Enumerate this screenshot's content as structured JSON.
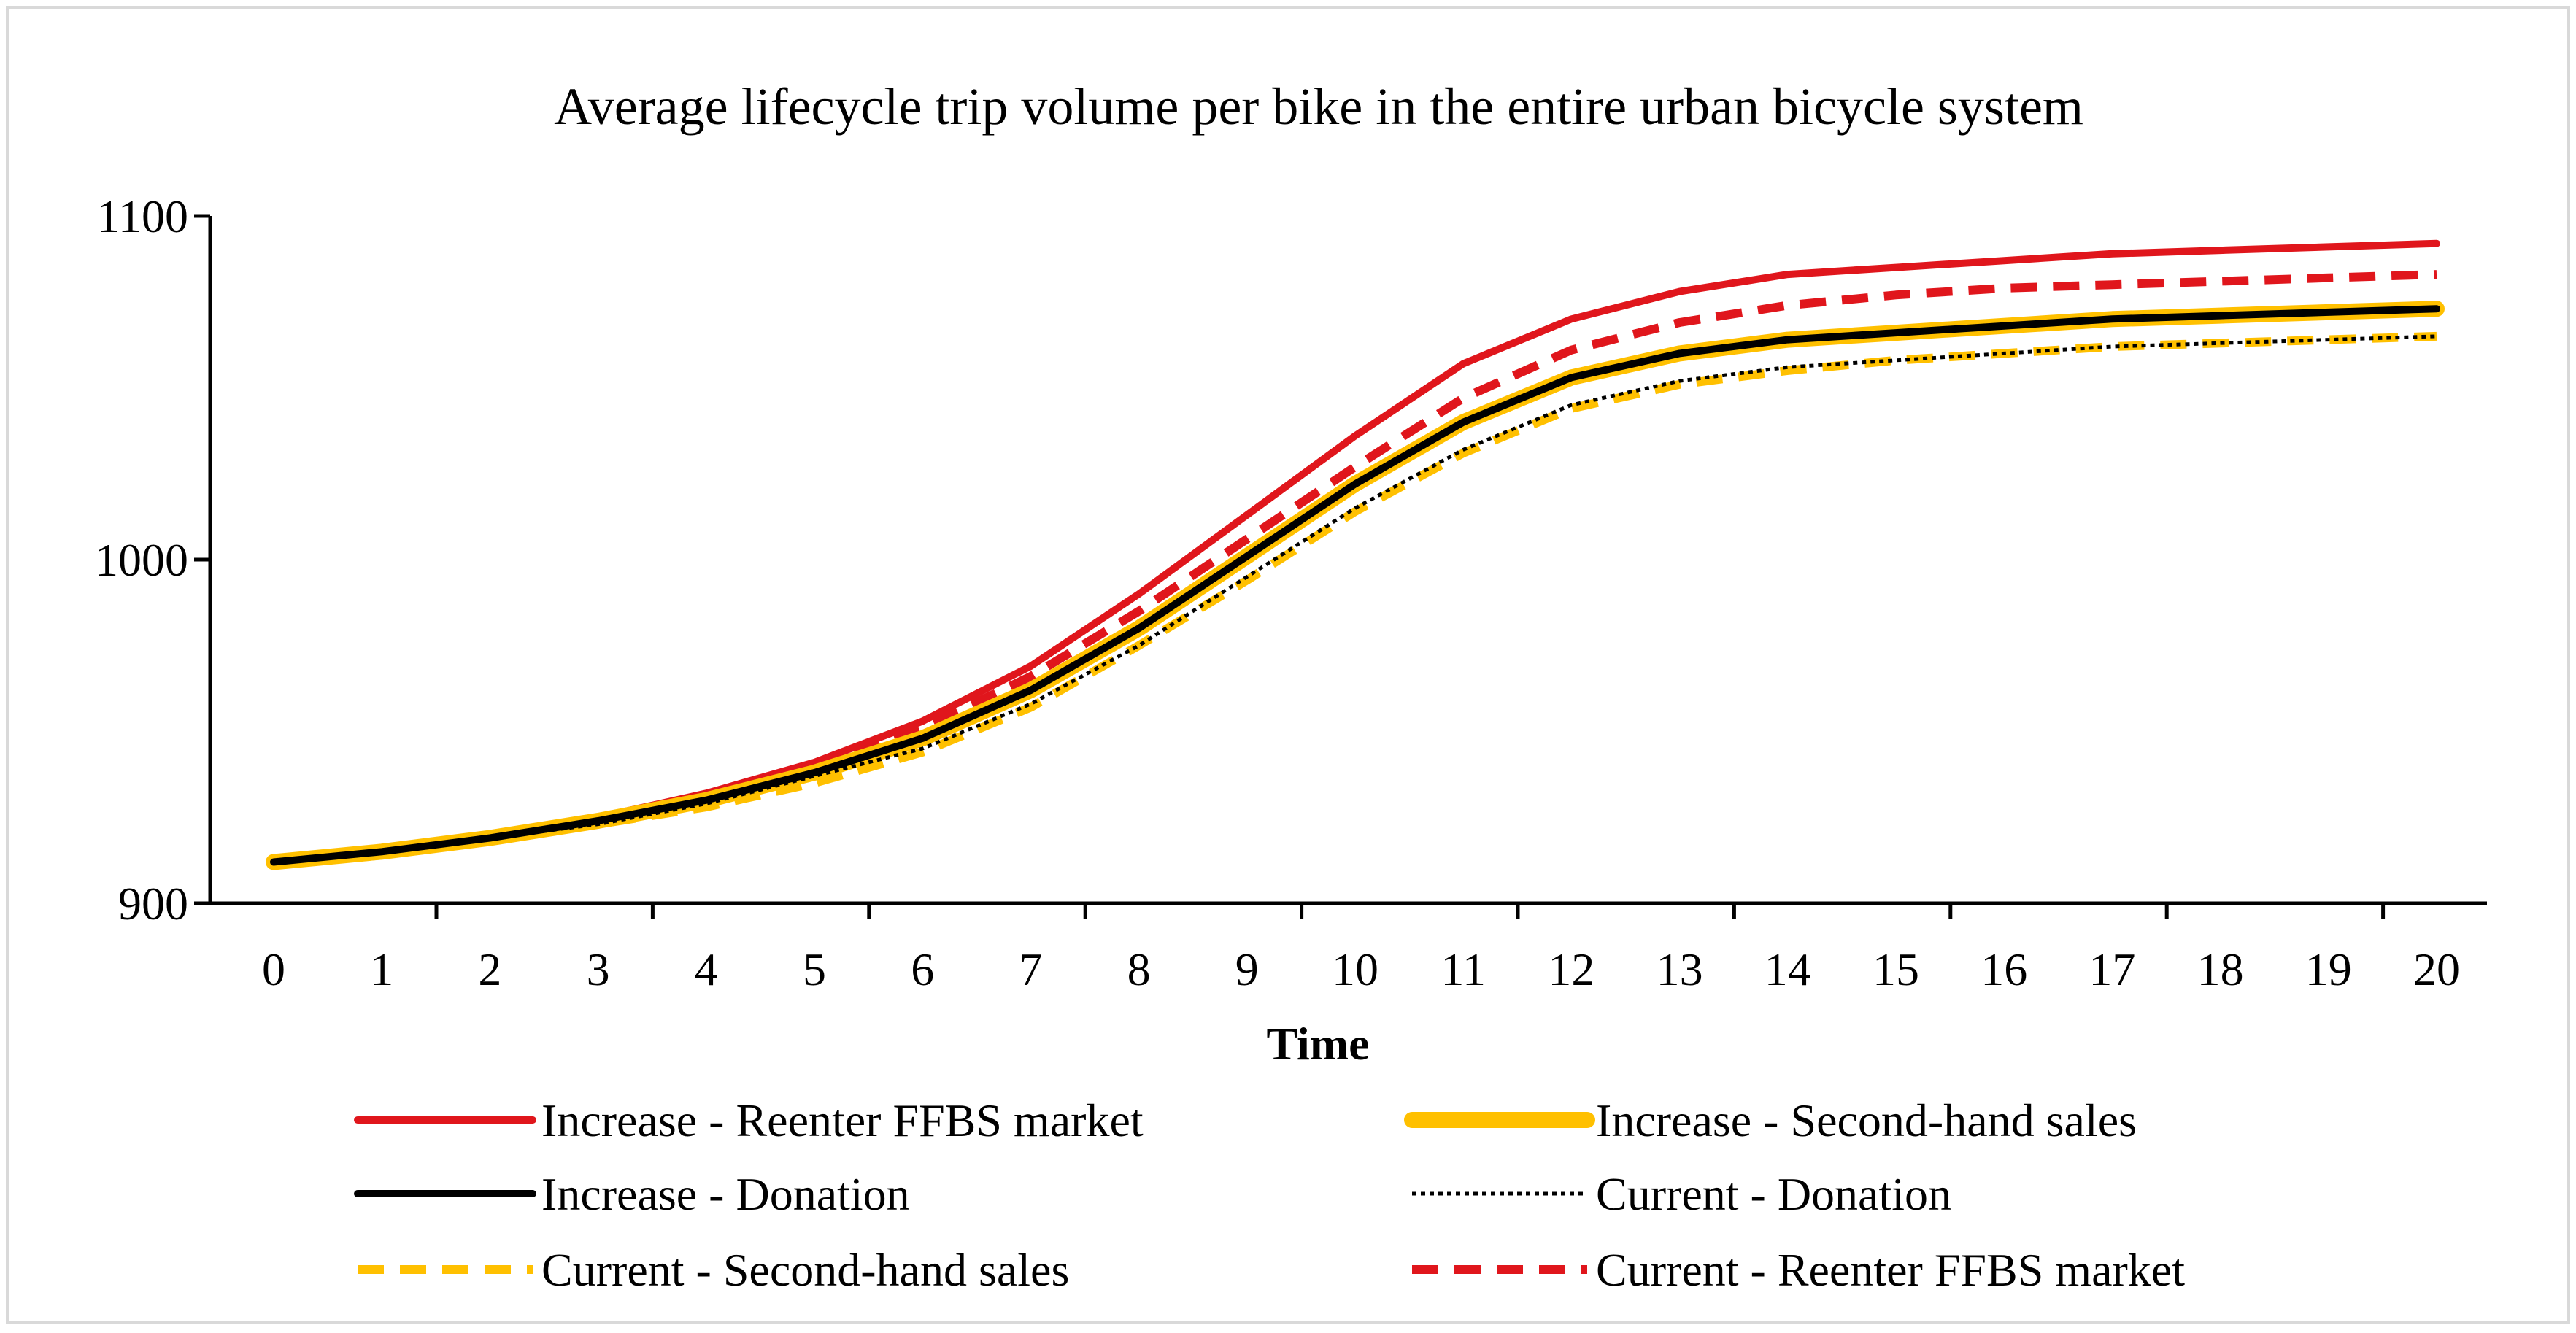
{
  "chart_data": {
    "type": "line",
    "title": "Average lifecycle trip volume per bike in the entire urban bicycle system",
    "xlabel": "Time",
    "ylabel": "",
    "x": [
      0,
      1,
      2,
      3,
      4,
      5,
      6,
      7,
      8,
      9,
      10,
      11,
      12,
      13,
      14,
      15,
      16,
      17,
      18,
      19,
      20
    ],
    "xticks": [
      "0",
      "1",
      "2",
      "3",
      "4",
      "5",
      "6",
      "7",
      "8",
      "9",
      "10",
      "11",
      "12",
      "13",
      "14",
      "15",
      "16",
      "17",
      "18",
      "19",
      "20"
    ],
    "ylim": [
      900,
      1100
    ],
    "yticks": [
      "900",
      "1000",
      "1100"
    ],
    "grid": false,
    "legend_position": "bottom",
    "series": [
      {
        "name": "Increase - Reenter FFBS market",
        "color": "#E0161C",
        "style": "solid",
        "values": [
          912,
          915,
          920,
          925,
          932,
          941,
          953,
          969,
          990,
          1013,
          1036,
          1057,
          1070,
          1078,
          1083,
          1085,
          1087,
          1089,
          1090,
          1091,
          1092
        ]
      },
      {
        "name": "Increase - Second-hand sales",
        "color": "#FFC000",
        "style": "solid-thick",
        "values": [
          912,
          915,
          919,
          924,
          930,
          938,
          948,
          962,
          980,
          1001,
          1022,
          1040,
          1053,
          1060,
          1064,
          1066,
          1068,
          1070,
          1071,
          1072,
          1073
        ]
      },
      {
        "name": "Increase - Donation",
        "color": "#000000",
        "style": "solid",
        "values": [
          912,
          915,
          919,
          924,
          930,
          938,
          948,
          962,
          980,
          1001,
          1022,
          1040,
          1053,
          1060,
          1064,
          1066,
          1068,
          1070,
          1071,
          1072,
          1073
        ]
      },
      {
        "name": "Current - Donation",
        "color": "#000000",
        "style": "dotted",
        "values": [
          912,
          915,
          919,
          923,
          929,
          937,
          945,
          958,
          975,
          995,
          1015,
          1032,
          1045,
          1052,
          1056,
          1058,
          1060,
          1062,
          1063,
          1064,
          1065
        ]
      },
      {
        "name": "Current - Second-hand sales",
        "color": "#FFC000",
        "style": "dashed",
        "values": [
          911,
          914,
          918,
          923,
          928,
          935,
          944,
          957,
          975,
          994,
          1014,
          1031,
          1044,
          1051,
          1055,
          1058,
          1060,
          1062,
          1063,
          1064,
          1065
        ]
      },
      {
        "name": "Current - Reenter FFBS market",
        "color": "#E0161C",
        "style": "dashed",
        "values": [
          912,
          915,
          920,
          925,
          931,
          940,
          951,
          966,
          985,
          1006,
          1027,
          1047,
          1061,
          1069,
          1074,
          1077,
          1079,
          1080,
          1081,
          1082,
          1083
        ]
      }
    ]
  }
}
